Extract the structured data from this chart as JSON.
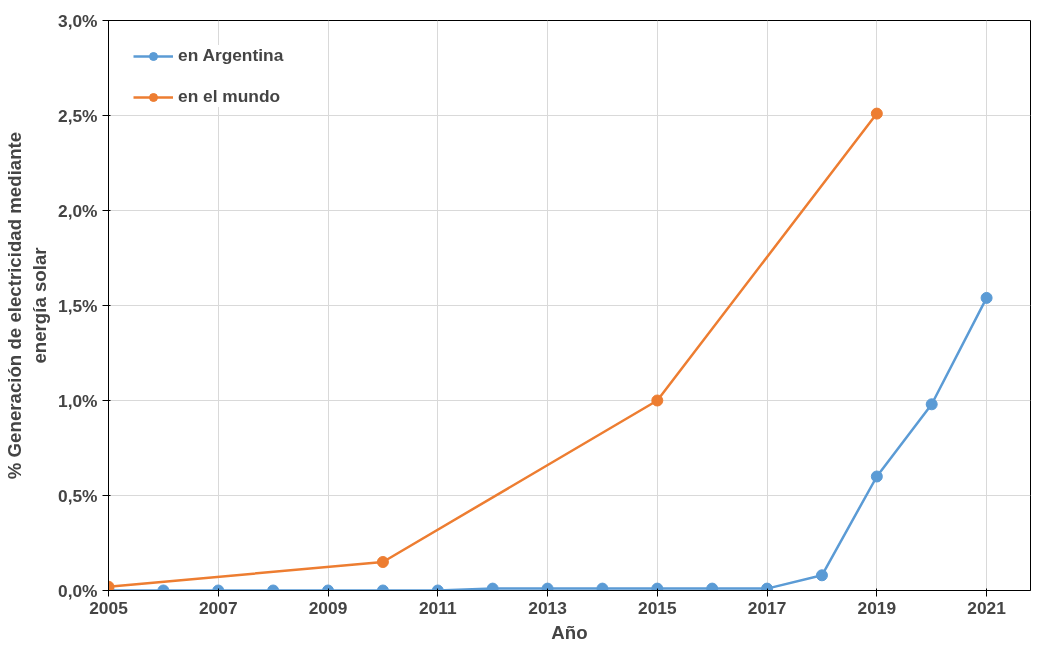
{
  "chart_data": {
    "type": "line",
    "xlabel": "Año",
    "ylabel": "% Generación de electricidad mediante\nenergía solar",
    "series": [
      {
        "name": "en Argentina",
        "color": "#5b9bd5",
        "x": [
          2005,
          2006,
          2007,
          2008,
          2009,
          2010,
          2011,
          2012,
          2013,
          2014,
          2015,
          2016,
          2017,
          2018,
          2019,
          2020,
          2021
        ],
        "values": [
          0,
          0,
          0,
          0,
          0,
          0,
          0,
          0.01,
          0.01,
          0.01,
          0.01,
          0.01,
          0.01,
          0.08,
          0.6,
          0.98,
          1.54
        ]
      },
      {
        "name": "en el mundo",
        "color": "#ed7d31",
        "x": [
          2005,
          2010,
          2015,
          2019
        ],
        "values": [
          0.02,
          0.15,
          1.0,
          2.51
        ]
      }
    ],
    "xlim": [
      2005,
      2021.8
    ],
    "xticks": [
      2005,
      2007,
      2009,
      2011,
      2013,
      2015,
      2017,
      2019,
      2021
    ],
    "ylim": [
      0,
      3
    ],
    "yticks": [
      {
        "value": 0,
        "label": "0,0%"
      },
      {
        "value": 0.5,
        "label": "0,5%"
      },
      {
        "value": 1,
        "label": "1,0%"
      },
      {
        "value": 1.5,
        "label": "1,5%"
      },
      {
        "value": 2,
        "label": "2,0%"
      },
      {
        "value": 2.5,
        "label": "2,5%"
      },
      {
        "value": 3,
        "label": "3,0%"
      }
    ],
    "grid": true,
    "legend": "top left",
    "marker": "circle",
    "line_style": "solid"
  }
}
